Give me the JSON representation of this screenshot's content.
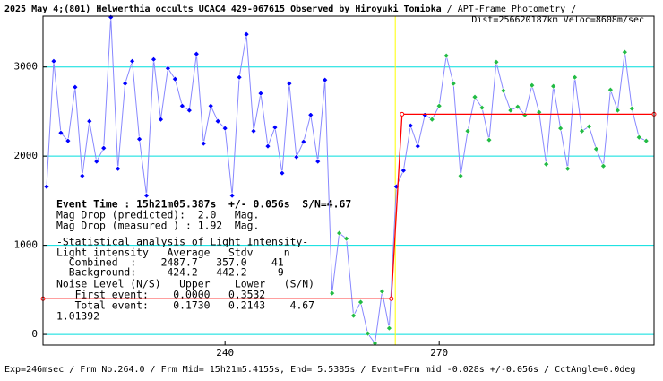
{
  "chart_data": {
    "type": "line",
    "title": "2025 May 4;(801) Helwerthia occults UCAC4 429-067615 Observed by Hiroyuki Tomioka",
    "title_suffix": "/ APT-Frame Photometry /",
    "subtitle": "Dist=256620187km Veloc=8608m/sec",
    "footer": "Exp=246msec / Frm No.264.0 / Frm Mid= 15h21m5.4155s, End= 5.5385s / Event=Frm mid -0.028s +/-0.056s / CctAngle=0.0deg",
    "annotations": [
      "Event Time : 15h21m05.387s  +/- 0.056s  S/N=4.67",
      "Mag Drop (predicted):  2.0   Mag.",
      "Mag Drop (measured ) : 1.92  Mag.",
      "-Statistical analysis of Light Intensity-",
      "Light intensity   Average   Stdv     n",
      "  Combined  :    2487.7   357.0    41",
      "  Background:     424.2   442.2     9",
      "Noise Level (N/S)   Upper    Lower   (S/N)",
      "   First event:    0.0000   0.3532",
      "   Total event:    0.1730   0.2143    4.67",
      "1.01392"
    ],
    "xlim": [
      214.5,
      300.1
    ],
    "ylim": [
      -120,
      3570
    ],
    "xticks": [
      240,
      270
    ],
    "yticks": [
      0,
      1000,
      2000,
      3000
    ],
    "grid": true,
    "grid_color": "#00dede",
    "line_color": "#8888ff",
    "series": [
      {
        "x": [
          215,
          216,
          217,
          218,
          219,
          220,
          221,
          222,
          223,
          224,
          225,
          226,
          227,
          228,
          229,
          230,
          231,
          232,
          233,
          234,
          235,
          236,
          237,
          238,
          239,
          240,
          241,
          242,
          243,
          244,
          245,
          246,
          247,
          248,
          249,
          250,
          251,
          252,
          253,
          254,
          255,
          256,
          257,
          258,
          259,
          260,
          261,
          262,
          263,
          264,
          265,
          266,
          267,
          268,
          269,
          270,
          271,
          272,
          273,
          274,
          275,
          276,
          277,
          278,
          279,
          280,
          281,
          282,
          283,
          284,
          285,
          286,
          287,
          288,
          289,
          290,
          291,
          292,
          293,
          294,
          295,
          296,
          297,
          298,
          299
        ],
        "values": [
          1658,
          3065,
          2261,
          2171,
          2774,
          1779,
          2392,
          1940,
          2090,
          3558,
          1859,
          2814,
          3065,
          2191,
          1558,
          3085,
          2412,
          2985,
          2864,
          2563,
          2513,
          3146,
          2141,
          2563,
          2392,
          2312,
          1558,
          2884,
          3367,
          2281,
          2704,
          2111,
          2322,
          1809,
          2814,
          1990,
          2161,
          2462,
          1940,
          2854,
          462,
          1136,
          1075,
          211,
          362,
          10,
          -100,
          482,
          70,
          1658,
          1839,
          2342,
          2111,
          2462,
          2412,
          2563,
          3126,
          2814,
          1779,
          2281,
          2663,
          2543,
          2181,
          3055,
          2734,
          2513,
          2553,
          2462,
          2794,
          2492,
          1909,
          2784,
          2312,
          1859,
          2884,
          2281,
          2332,
          2080,
          1889,
          2744,
          2513,
          3166,
          2533,
          2211,
          2171
        ],
        "marker_colors": [
          "#0000ff",
          "#0000ff",
          "#0000ff",
          "#0000ff",
          "#0000ff",
          "#0000ff",
          "#0000ff",
          "#0000ff",
          "#0000ff",
          "#0000ff",
          "#0000ff",
          "#0000ff",
          "#0000ff",
          "#0000ff",
          "#0000ff",
          "#0000ff",
          "#0000ff",
          "#0000ff",
          "#0000ff",
          "#0000ff",
          "#0000ff",
          "#0000ff",
          "#0000ff",
          "#0000ff",
          "#0000ff",
          "#0000ff",
          "#0000ff",
          "#0000ff",
          "#0000ff",
          "#0000ff",
          "#0000ff",
          "#0000ff",
          "#0000ff",
          "#0000ff",
          "#0000ff",
          "#0000ff",
          "#0000ff",
          "#0000ff",
          "#0000ff",
          "#0000ff",
          "#22bb44",
          "#22bb44",
          "#22bb44",
          "#22bb44",
          "#22bb44",
          "#22bb44",
          "#22bb44",
          "#22bb44",
          "#22bb44",
          "#0000ff",
          "#0000ff",
          "#0000ff",
          "#0000ff",
          "#0000ff",
          "#22bb44",
          "#22bb44",
          "#22bb44",
          "#22bb44",
          "#22bb44",
          "#22bb44",
          "#22bb44",
          "#22bb44",
          "#22bb44",
          "#22bb44",
          "#22bb44",
          "#22bb44",
          "#22bb44",
          "#22bb44",
          "#22bb44",
          "#22bb44",
          "#22bb44",
          "#22bb44",
          "#22bb44",
          "#22bb44",
          "#22bb44",
          "#22bb44",
          "#22bb44",
          "#22bb44",
          "#22bb44",
          "#22bb44",
          "#22bb44",
          "#22bb44",
          "#22bb44",
          "#22bb44",
          "#22bb44"
        ]
      }
    ],
    "model": {
      "color": "#ff0000",
      "x": [
        214.5,
        263.3,
        264.8,
        300.1
      ],
      "values": [
        400,
        400,
        2470,
        2470
      ]
    },
    "event_x": 263.85,
    "event_color": "#ffff00"
  }
}
